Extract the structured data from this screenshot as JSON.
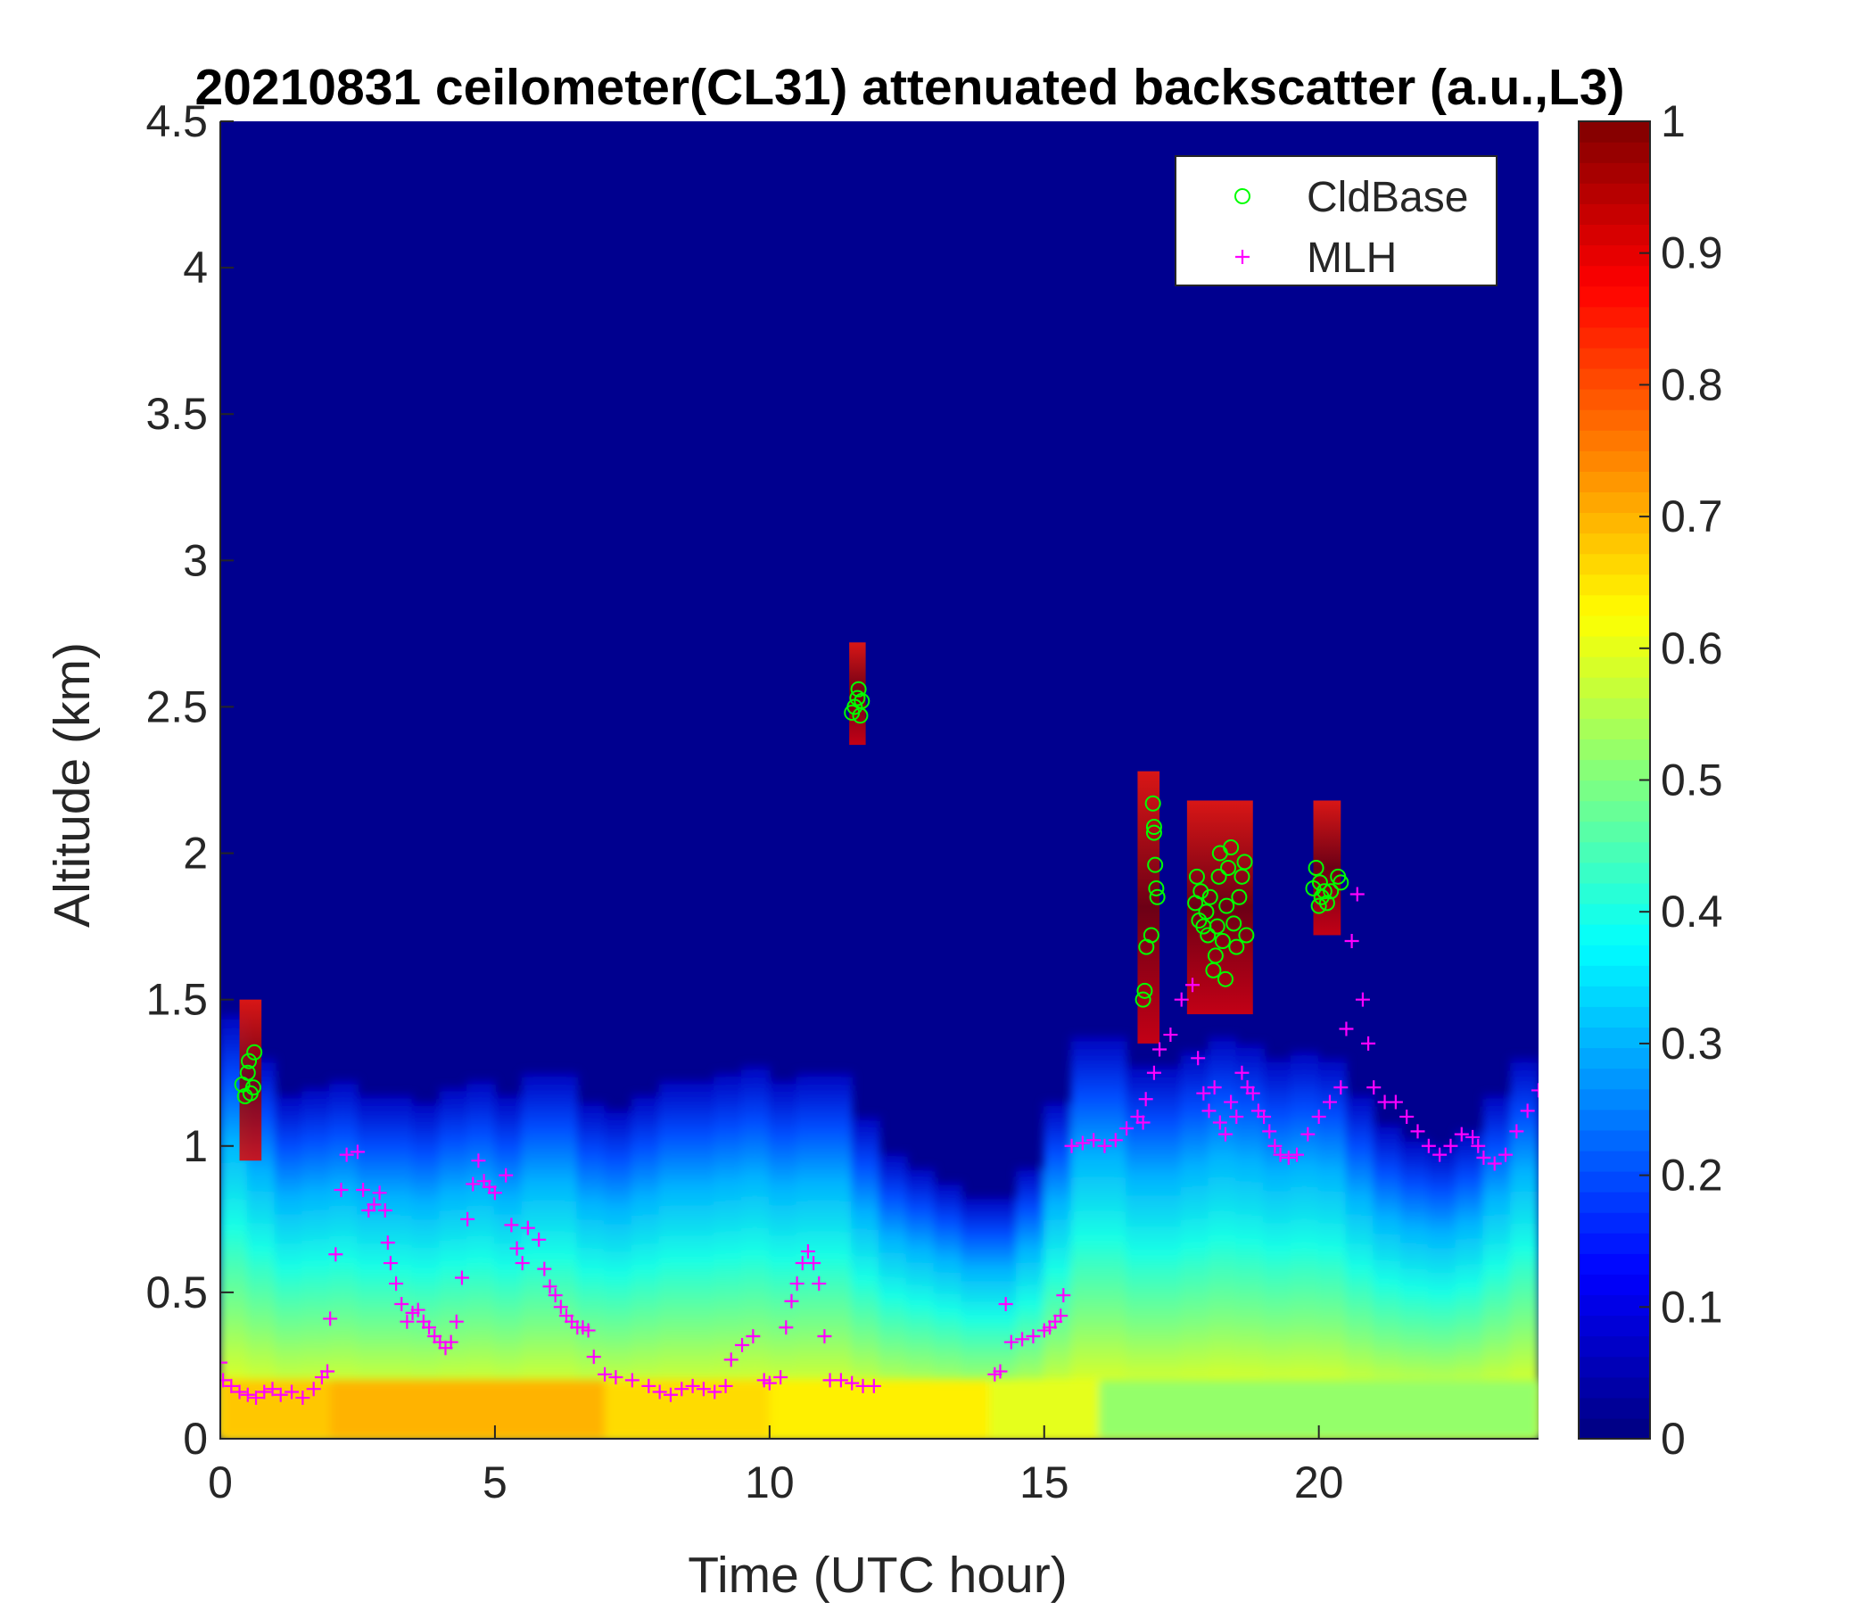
{
  "chart_data": {
    "type": "heatmap",
    "title": "20210831 ceilometer(CL31) attenuated backscatter (a.u.,L3)",
    "xlabel": "Time (UTC hour)",
    "ylabel": "Altitude (km)",
    "xlim": [
      0,
      24
    ],
    "ylim": [
      0,
      4.5
    ],
    "xticks": [
      0,
      5,
      10,
      15,
      20
    ],
    "xtick_labels": [
      "0",
      "5",
      "10",
      "15",
      "20"
    ],
    "yticks": [
      0,
      0.5,
      1,
      1.5,
      2,
      2.5,
      3,
      3.5,
      4,
      4.5
    ],
    "ytick_labels": [
      "0",
      "0.5",
      "1",
      "1.5",
      "2",
      "2.5",
      "3",
      "3.5",
      "4",
      "4.5"
    ],
    "colorbar": {
      "colormap": "jet",
      "range": [
        0,
        1
      ],
      "ticks": [
        0,
        0.1,
        0.2,
        0.3,
        0.4,
        0.5,
        0.6,
        0.7,
        0.8,
        0.9,
        1
      ],
      "tick_labels": [
        "0",
        "0.1",
        "0.2",
        "0.3",
        "0.4",
        "0.5",
        "0.6",
        "0.7",
        "0.8",
        "0.9",
        "1"
      ]
    },
    "legend": {
      "placement": "top-right",
      "entries": [
        {
          "label": "CldBase",
          "marker": "circle",
          "color": "#00ff00"
        },
        {
          "label": "MLH",
          "marker": "plus",
          "color": "#ff00ff"
        }
      ]
    },
    "aerosol_layer_top_km": {
      "x": [
        0,
        0.5,
        1,
        1.5,
        2,
        2.5,
        3,
        3.5,
        4,
        4.5,
        5,
        5.5,
        6,
        6.5,
        7,
        7.5,
        8,
        8.5,
        9,
        9.5,
        10,
        10.5,
        11,
        11.5,
        12,
        12.5,
        13,
        13.5,
        14,
        14.5,
        15,
        15.5,
        16,
        16.5,
        17,
        17.5,
        18,
        18.5,
        19,
        19.5,
        20,
        20.5,
        21,
        21.5,
        22,
        22.5,
        23,
        23.5,
        24
      ],
      "y": [
        1.5,
        1.4,
        1.2,
        1.15,
        1.25,
        1.2,
        1.15,
        1.2,
        1.1,
        1.3,
        1.15,
        1.2,
        1.3,
        1.2,
        1.1,
        1.15,
        1.2,
        1.25,
        1.2,
        1.3,
        1.25,
        1.2,
        1.3,
        1.2,
        1.0,
        0.95,
        0.9,
        0.85,
        0.8,
        0.85,
        1.0,
        1.3,
        1.45,
        1.3,
        1.25,
        1.3,
        1.35,
        1.4,
        1.3,
        1.3,
        1.35,
        1.25,
        1.1,
        1.05,
        1.0,
        1.0,
        1.1,
        1.25,
        1.35
      ]
    },
    "cloud_segments": [
      {
        "x_from": 0.35,
        "x_to": 0.75,
        "y_from": 0.95,
        "y_to": 1.5
      },
      {
        "x_from": 11.45,
        "x_to": 11.75,
        "y_from": 2.37,
        "y_to": 2.72
      },
      {
        "x_from": 16.7,
        "x_to": 17.1,
        "y_from": 1.35,
        "y_to": 2.28
      },
      {
        "x_from": 17.6,
        "x_to": 18.8,
        "y_from": 1.45,
        "y_to": 2.18
      },
      {
        "x_from": 19.9,
        "x_to": 20.4,
        "y_from": 1.72,
        "y_to": 2.18
      }
    ],
    "series": [
      {
        "name": "CldBase",
        "marker": "circle",
        "color": "#00ff00",
        "points": [
          [
            0.4,
            1.21
          ],
          [
            0.45,
            1.17
          ],
          [
            0.5,
            1.25
          ],
          [
            0.52,
            1.29
          ],
          [
            0.55,
            1.18
          ],
          [
            0.6,
            1.2
          ],
          [
            0.62,
            1.32
          ],
          [
            11.5,
            2.48
          ],
          [
            11.55,
            2.5
          ],
          [
            11.6,
            2.53
          ],
          [
            11.62,
            2.56
          ],
          [
            11.65,
            2.47
          ],
          [
            11.68,
            2.52
          ],
          [
            16.8,
            1.5
          ],
          [
            16.83,
            1.53
          ],
          [
            16.86,
            1.68
          ],
          [
            16.95,
            1.72
          ],
          [
            16.98,
            2.17
          ],
          [
            17.0,
            2.09
          ],
          [
            17.0,
            2.07
          ],
          [
            17.02,
            1.96
          ],
          [
            17.04,
            1.88
          ],
          [
            17.06,
            1.85
          ],
          [
            17.75,
            1.83
          ],
          [
            17.78,
            1.92
          ],
          [
            17.82,
            1.77
          ],
          [
            17.85,
            1.87
          ],
          [
            17.9,
            1.75
          ],
          [
            17.95,
            1.8
          ],
          [
            17.98,
            1.72
          ],
          [
            18.02,
            1.85
          ],
          [
            18.08,
            1.6
          ],
          [
            18.12,
            1.65
          ],
          [
            18.15,
            1.75
          ],
          [
            18.18,
            1.92
          ],
          [
            18.2,
            2.0
          ],
          [
            18.25,
            1.7
          ],
          [
            18.3,
            1.57
          ],
          [
            18.32,
            1.82
          ],
          [
            18.35,
            1.95
          ],
          [
            18.4,
            2.02
          ],
          [
            18.45,
            1.76
          ],
          [
            18.5,
            1.68
          ],
          [
            18.55,
            1.85
          ],
          [
            18.6,
            1.92
          ],
          [
            18.65,
            1.97
          ],
          [
            18.68,
            1.72
          ],
          [
            19.9,
            1.88
          ],
          [
            19.95,
            1.95
          ],
          [
            20.0,
            1.82
          ],
          [
            20.02,
            1.9
          ],
          [
            20.05,
            1.85
          ],
          [
            20.1,
            1.87
          ],
          [
            20.15,
            1.83
          ],
          [
            20.22,
            1.87
          ],
          [
            20.35,
            1.92
          ],
          [
            20.4,
            1.9
          ]
        ]
      },
      {
        "name": "MLH",
        "marker": "plus",
        "color": "#ff00ff",
        "points": [
          [
            0.0,
            0.26
          ],
          [
            0.05,
            0.2
          ],
          [
            0.2,
            0.18
          ],
          [
            0.35,
            0.16
          ],
          [
            0.5,
            0.15
          ],
          [
            0.65,
            0.14
          ],
          [
            0.8,
            0.16
          ],
          [
            0.95,
            0.17
          ],
          [
            1.1,
            0.15
          ],
          [
            1.3,
            0.16
          ],
          [
            1.5,
            0.14
          ],
          [
            1.7,
            0.17
          ],
          [
            1.85,
            0.21
          ],
          [
            1.95,
            0.23
          ],
          [
            2.0,
            0.41
          ],
          [
            2.1,
            0.63
          ],
          [
            2.2,
            0.85
          ],
          [
            2.3,
            0.97
          ],
          [
            2.5,
            0.98
          ],
          [
            2.6,
            0.85
          ],
          [
            2.7,
            0.78
          ],
          [
            2.8,
            0.8
          ],
          [
            2.9,
            0.84
          ],
          [
            3.0,
            0.78
          ],
          [
            3.05,
            0.67
          ],
          [
            3.1,
            0.6
          ],
          [
            3.2,
            0.53
          ],
          [
            3.3,
            0.46
          ],
          [
            3.4,
            0.4
          ],
          [
            3.5,
            0.43
          ],
          [
            3.6,
            0.44
          ],
          [
            3.7,
            0.4
          ],
          [
            3.8,
            0.38
          ],
          [
            3.9,
            0.35
          ],
          [
            4.0,
            0.33
          ],
          [
            4.1,
            0.31
          ],
          [
            4.2,
            0.33
          ],
          [
            4.3,
            0.4
          ],
          [
            4.4,
            0.55
          ],
          [
            4.5,
            0.75
          ],
          [
            4.6,
            0.87
          ],
          [
            4.7,
            0.95
          ],
          [
            4.8,
            0.88
          ],
          [
            4.9,
            0.86
          ],
          [
            5.0,
            0.84
          ],
          [
            5.2,
            0.9
          ],
          [
            5.3,
            0.73
          ],
          [
            5.4,
            0.65
          ],
          [
            5.5,
            0.6
          ],
          [
            5.6,
            0.72
          ],
          [
            5.8,
            0.68
          ],
          [
            5.9,
            0.58
          ],
          [
            6.0,
            0.52
          ],
          [
            6.1,
            0.49
          ],
          [
            6.2,
            0.45
          ],
          [
            6.3,
            0.42
          ],
          [
            6.4,
            0.4
          ],
          [
            6.5,
            0.38
          ],
          [
            6.6,
            0.38
          ],
          [
            6.7,
            0.37
          ],
          [
            6.8,
            0.28
          ],
          [
            7.0,
            0.22
          ],
          [
            7.2,
            0.21
          ],
          [
            7.5,
            0.2
          ],
          [
            7.8,
            0.18
          ],
          [
            8.0,
            0.16
          ],
          [
            8.2,
            0.15
          ],
          [
            8.4,
            0.17
          ],
          [
            8.6,
            0.18
          ],
          [
            8.8,
            0.17
          ],
          [
            9.0,
            0.16
          ],
          [
            9.2,
            0.18
          ],
          [
            9.3,
            0.27
          ],
          [
            9.5,
            0.32
          ],
          [
            9.7,
            0.35
          ],
          [
            9.9,
            0.2
          ],
          [
            10.0,
            0.19
          ],
          [
            10.2,
            0.21
          ],
          [
            10.3,
            0.38
          ],
          [
            10.4,
            0.47
          ],
          [
            10.5,
            0.53
          ],
          [
            10.6,
            0.6
          ],
          [
            10.7,
            0.64
          ],
          [
            10.8,
            0.6
          ],
          [
            10.9,
            0.53
          ],
          [
            11.0,
            0.35
          ],
          [
            11.1,
            0.2
          ],
          [
            11.3,
            0.2
          ],
          [
            11.5,
            0.19
          ],
          [
            11.7,
            0.18
          ],
          [
            11.9,
            0.18
          ],
          [
            14.1,
            0.22
          ],
          [
            14.2,
            0.23
          ],
          [
            14.3,
            0.46
          ],
          [
            14.4,
            0.33
          ],
          [
            14.6,
            0.34
          ],
          [
            14.8,
            0.35
          ],
          [
            15.0,
            0.37
          ],
          [
            15.1,
            0.38
          ],
          [
            15.2,
            0.4
          ],
          [
            15.3,
            0.42
          ],
          [
            15.35,
            0.49
          ],
          [
            15.5,
            1.0
          ],
          [
            15.7,
            1.01
          ],
          [
            15.9,
            1.02
          ],
          [
            16.1,
            1.0
          ],
          [
            16.3,
            1.02
          ],
          [
            16.5,
            1.06
          ],
          [
            16.7,
            1.1
          ],
          [
            16.8,
            1.08
          ],
          [
            16.85,
            1.16
          ],
          [
            17.0,
            1.25
          ],
          [
            17.1,
            1.33
          ],
          [
            17.3,
            1.38
          ],
          [
            17.5,
            1.5
          ],
          [
            17.7,
            1.55
          ],
          [
            17.8,
            1.3
          ],
          [
            17.9,
            1.18
          ],
          [
            18.0,
            1.12
          ],
          [
            18.1,
            1.2
          ],
          [
            18.2,
            1.08
          ],
          [
            18.3,
            1.04
          ],
          [
            18.4,
            1.15
          ],
          [
            18.5,
            1.1
          ],
          [
            18.6,
            1.25
          ],
          [
            18.7,
            1.2
          ],
          [
            18.8,
            1.18
          ],
          [
            18.9,
            1.12
          ],
          [
            19.0,
            1.1
          ],
          [
            19.1,
            1.05
          ],
          [
            19.2,
            1.0
          ],
          [
            19.3,
            0.97
          ],
          [
            19.45,
            0.96
          ],
          [
            19.6,
            0.97
          ],
          [
            19.8,
            1.04
          ],
          [
            20.0,
            1.1
          ],
          [
            20.2,
            1.15
          ],
          [
            20.4,
            1.2
          ],
          [
            20.5,
            1.4
          ],
          [
            20.6,
            1.7
          ],
          [
            20.7,
            1.86
          ],
          [
            20.8,
            1.5
          ],
          [
            20.9,
            1.35
          ],
          [
            21.0,
            1.2
          ],
          [
            21.2,
            1.15
          ],
          [
            21.4,
            1.15
          ],
          [
            21.6,
            1.1
          ],
          [
            21.8,
            1.05
          ],
          [
            22.0,
            1.0
          ],
          [
            22.2,
            0.97
          ],
          [
            22.4,
            1.0
          ],
          [
            22.6,
            1.04
          ],
          [
            22.8,
            1.03
          ],
          [
            22.9,
            1.0
          ],
          [
            23.0,
            0.96
          ],
          [
            23.2,
            0.94
          ],
          [
            23.4,
            0.97
          ],
          [
            23.6,
            1.05
          ],
          [
            23.8,
            1.12
          ],
          [
            24.0,
            1.19
          ]
        ]
      }
    ]
  }
}
